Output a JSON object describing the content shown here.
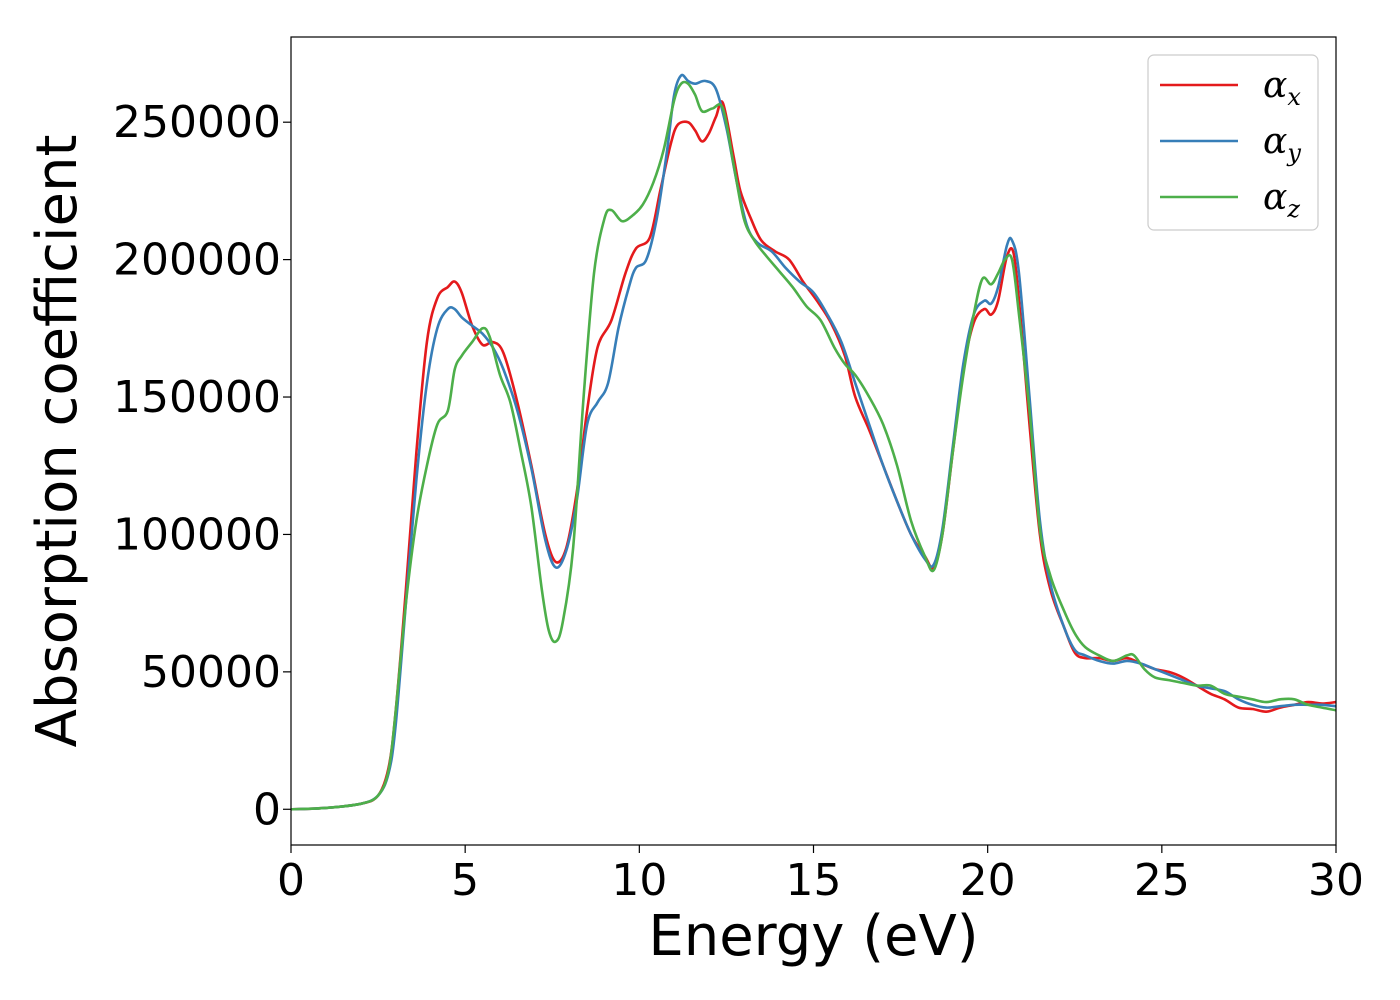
{
  "chart_data": {
    "type": "line",
    "xlabel": "Energy (eV)",
    "ylabel": "Absorption coefficient",
    "xlim": [
      0,
      30
    ],
    "ylim": [
      -13000,
      281000
    ],
    "xticks": [
      "0",
      "5",
      "10",
      "15",
      "20",
      "25",
      "30"
    ],
    "yticks": [
      "0",
      "50000",
      "100000",
      "150000",
      "200000",
      "250000"
    ],
    "grid": false,
    "legend_position": "top-right",
    "series": [
      {
        "name": "α",
        "subscript": "x",
        "color": "#e41a1c",
        "points": [
          [
            0,
            0
          ],
          [
            1,
            500
          ],
          [
            2,
            2000
          ],
          [
            2.5,
            5000
          ],
          [
            2.8,
            15000
          ],
          [
            3.0,
            35000
          ],
          [
            3.3,
            80000
          ],
          [
            3.6,
            130000
          ],
          [
            3.9,
            170000
          ],
          [
            4.2,
            186000
          ],
          [
            4.5,
            190000
          ],
          [
            4.7,
            192000
          ],
          [
            4.9,
            188000
          ],
          [
            5.2,
            176000
          ],
          [
            5.5,
            169000
          ],
          [
            5.8,
            170000
          ],
          [
            6.1,
            166000
          ],
          [
            6.5,
            148000
          ],
          [
            6.9,
            125000
          ],
          [
            7.3,
            100000
          ],
          [
            7.6,
            90000
          ],
          [
            7.9,
            95000
          ],
          [
            8.2,
            115000
          ],
          [
            8.5,
            145000
          ],
          [
            8.8,
            168000
          ],
          [
            9.2,
            178000
          ],
          [
            9.6,
            195000
          ],
          [
            9.9,
            204000
          ],
          [
            10.3,
            208000
          ],
          [
            10.6,
            225000
          ],
          [
            10.9,
            242000
          ],
          [
            11.1,
            249000
          ],
          [
            11.4,
            250000
          ],
          [
            11.6,
            247000
          ],
          [
            11.8,
            243000
          ],
          [
            12.0,
            246000
          ],
          [
            12.2,
            252000
          ],
          [
            12.4,
            257000
          ],
          [
            12.7,
            238000
          ],
          [
            12.9,
            225000
          ],
          [
            13.2,
            215000
          ],
          [
            13.5,
            207000
          ],
          [
            13.9,
            203000
          ],
          [
            14.3,
            200000
          ],
          [
            14.7,
            192000
          ],
          [
            15.1,
            185000
          ],
          [
            15.5,
            177000
          ],
          [
            15.9,
            165000
          ],
          [
            16.2,
            150000
          ],
          [
            16.6,
            138000
          ],
          [
            17.0,
            125000
          ],
          [
            17.4,
            112000
          ],
          [
            17.8,
            100000
          ],
          [
            18.2,
            92000
          ],
          [
            18.45,
            88000
          ],
          [
            18.7,
            100000
          ],
          [
            19.0,
            130000
          ],
          [
            19.3,
            160000
          ],
          [
            19.6,
            177000
          ],
          [
            19.9,
            182000
          ],
          [
            20.1,
            180000
          ],
          [
            20.3,
            185000
          ],
          [
            20.55,
            201000
          ],
          [
            20.75,
            202000
          ],
          [
            20.95,
            178000
          ],
          [
            21.2,
            140000
          ],
          [
            21.5,
            100000
          ],
          [
            21.8,
            80000
          ],
          [
            22.2,
            66000
          ],
          [
            22.5,
            57000
          ],
          [
            22.8,
            55000
          ],
          [
            23.2,
            55000
          ],
          [
            23.6,
            54000
          ],
          [
            24.0,
            55000
          ],
          [
            24.4,
            53000
          ],
          [
            24.8,
            51000
          ],
          [
            25.2,
            50000
          ],
          [
            25.6,
            48000
          ],
          [
            26.0,
            45000
          ],
          [
            26.4,
            42000
          ],
          [
            26.8,
            40000
          ],
          [
            27.2,
            37000
          ],
          [
            27.6,
            36500
          ],
          [
            28.0,
            35500
          ],
          [
            28.4,
            37000
          ],
          [
            28.8,
            38000
          ],
          [
            29.2,
            39000
          ],
          [
            29.6,
            38500
          ],
          [
            30.0,
            39000
          ]
        ]
      },
      {
        "name": "α",
        "subscript": "y",
        "color": "#377eb8",
        "points": [
          [
            0,
            0
          ],
          [
            1,
            500
          ],
          [
            2,
            2000
          ],
          [
            2.5,
            5000
          ],
          [
            2.8,
            13000
          ],
          [
            3.0,
            30000
          ],
          [
            3.3,
            75000
          ],
          [
            3.6,
            120000
          ],
          [
            3.9,
            155000
          ],
          [
            4.2,
            175000
          ],
          [
            4.5,
            182000
          ],
          [
            4.7,
            182000
          ],
          [
            4.9,
            179000
          ],
          [
            5.2,
            176000
          ],
          [
            5.5,
            173000
          ],
          [
            5.8,
            168000
          ],
          [
            6.1,
            160000
          ],
          [
            6.5,
            145000
          ],
          [
            6.9,
            124000
          ],
          [
            7.3,
            98000
          ],
          [
            7.6,
            88000
          ],
          [
            7.9,
            94000
          ],
          [
            8.2,
            112000
          ],
          [
            8.5,
            140000
          ],
          [
            8.8,
            148000
          ],
          [
            9.1,
            155000
          ],
          [
            9.4,
            175000
          ],
          [
            9.7,
            190000
          ],
          [
            9.9,
            197000
          ],
          [
            10.2,
            200000
          ],
          [
            10.5,
            215000
          ],
          [
            10.8,
            240000
          ],
          [
            11.0,
            260000
          ],
          [
            11.2,
            267000
          ],
          [
            11.4,
            265000
          ],
          [
            11.6,
            264000
          ],
          [
            11.9,
            265000
          ],
          [
            12.2,
            262000
          ],
          [
            12.5,
            248000
          ],
          [
            12.8,
            228000
          ],
          [
            13.1,
            212000
          ],
          [
            13.4,
            206000
          ],
          [
            13.8,
            203000
          ],
          [
            14.2,
            197000
          ],
          [
            14.6,
            192000
          ],
          [
            15.0,
            188000
          ],
          [
            15.4,
            180000
          ],
          [
            15.8,
            170000
          ],
          [
            16.2,
            155000
          ],
          [
            16.6,
            140000
          ],
          [
            17.0,
            125000
          ],
          [
            17.4,
            112000
          ],
          [
            17.8,
            100000
          ],
          [
            18.2,
            91000
          ],
          [
            18.45,
            89000
          ],
          [
            18.7,
            102000
          ],
          [
            19.0,
            132000
          ],
          [
            19.3,
            162000
          ],
          [
            19.6,
            180000
          ],
          [
            19.9,
            185000
          ],
          [
            20.1,
            184000
          ],
          [
            20.3,
            190000
          ],
          [
            20.55,
            205000
          ],
          [
            20.7,
            207000
          ],
          [
            20.9,
            195000
          ],
          [
            21.2,
            150000
          ],
          [
            21.5,
            105000
          ],
          [
            21.8,
            82000
          ],
          [
            22.2,
            66000
          ],
          [
            22.5,
            58000
          ],
          [
            22.8,
            56000
          ],
          [
            23.2,
            54000
          ],
          [
            23.6,
            53000
          ],
          [
            24.0,
            54000
          ],
          [
            24.4,
            53000
          ],
          [
            24.8,
            51000
          ],
          [
            25.2,
            49000
          ],
          [
            25.6,
            47000
          ],
          [
            26.0,
            45000
          ],
          [
            26.4,
            44000
          ],
          [
            26.8,
            43000
          ],
          [
            27.2,
            40000
          ],
          [
            27.6,
            38000
          ],
          [
            28.0,
            37000
          ],
          [
            28.4,
            37500
          ],
          [
            28.8,
            38000
          ],
          [
            29.2,
            38000
          ],
          [
            29.6,
            38000
          ],
          [
            30.0,
            37500
          ]
        ]
      },
      {
        "name": "α",
        "subscript": "z",
        "color": "#4daf4a",
        "points": [
          [
            0,
            0
          ],
          [
            1,
            500
          ],
          [
            2,
            2000
          ],
          [
            2.5,
            5000
          ],
          [
            2.8,
            14000
          ],
          [
            3.0,
            35000
          ],
          [
            3.3,
            75000
          ],
          [
            3.6,
            105000
          ],
          [
            3.9,
            125000
          ],
          [
            4.2,
            140000
          ],
          [
            4.5,
            145000
          ],
          [
            4.7,
            160000
          ],
          [
            4.9,
            165000
          ],
          [
            5.2,
            170000
          ],
          [
            5.5,
            175000
          ],
          [
            5.7,
            172000
          ],
          [
            6.0,
            158000
          ],
          [
            6.3,
            148000
          ],
          [
            6.6,
            130000
          ],
          [
            6.9,
            110000
          ],
          [
            7.2,
            80000
          ],
          [
            7.4,
            65000
          ],
          [
            7.6,
            61000
          ],
          [
            7.8,
            68000
          ],
          [
            8.1,
            95000
          ],
          [
            8.4,
            150000
          ],
          [
            8.7,
            195000
          ],
          [
            9.0,
            215000
          ],
          [
            9.2,
            218000
          ],
          [
            9.5,
            214000
          ],
          [
            9.8,
            216000
          ],
          [
            10.1,
            220000
          ],
          [
            10.4,
            228000
          ],
          [
            10.7,
            240000
          ],
          [
            11.0,
            258000
          ],
          [
            11.2,
            264000
          ],
          [
            11.4,
            264000
          ],
          [
            11.6,
            260000
          ],
          [
            11.8,
            254000
          ],
          [
            12.1,
            255000
          ],
          [
            12.4,
            255000
          ],
          [
            12.7,
            235000
          ],
          [
            13.0,
            215000
          ],
          [
            13.3,
            207000
          ],
          [
            13.6,
            202000
          ],
          [
            14.0,
            196000
          ],
          [
            14.4,
            190000
          ],
          [
            14.8,
            183000
          ],
          [
            15.2,
            178000
          ],
          [
            15.6,
            168000
          ],
          [
            15.9,
            162000
          ],
          [
            16.2,
            158000
          ],
          [
            16.6,
            150000
          ],
          [
            17.0,
            140000
          ],
          [
            17.4,
            125000
          ],
          [
            17.8,
            105000
          ],
          [
            18.2,
            92000
          ],
          [
            18.45,
            87000
          ],
          [
            18.7,
            100000
          ],
          [
            19.0,
            130000
          ],
          [
            19.3,
            158000
          ],
          [
            19.6,
            180000
          ],
          [
            19.85,
            193000
          ],
          [
            20.1,
            191000
          ],
          [
            20.3,
            195000
          ],
          [
            20.5,
            200000
          ],
          [
            20.7,
            200000
          ],
          [
            20.9,
            180000
          ],
          [
            21.2,
            145000
          ],
          [
            21.5,
            102000
          ],
          [
            21.8,
            85000
          ],
          [
            22.2,
            72000
          ],
          [
            22.5,
            64000
          ],
          [
            22.8,
            59000
          ],
          [
            23.2,
            56000
          ],
          [
            23.6,
            54000
          ],
          [
            24.0,
            56000
          ],
          [
            24.2,
            56000
          ],
          [
            24.5,
            51000
          ],
          [
            24.8,
            48000
          ],
          [
            25.2,
            47000
          ],
          [
            25.6,
            46000
          ],
          [
            26.0,
            45000
          ],
          [
            26.4,
            45000
          ],
          [
            26.8,
            42000
          ],
          [
            27.2,
            41000
          ],
          [
            27.6,
            40000
          ],
          [
            28.0,
            39000
          ],
          [
            28.4,
            40000
          ],
          [
            28.8,
            40000
          ],
          [
            29.2,
            38000
          ],
          [
            29.6,
            37000
          ],
          [
            30.0,
            36000
          ]
        ]
      }
    ]
  }
}
